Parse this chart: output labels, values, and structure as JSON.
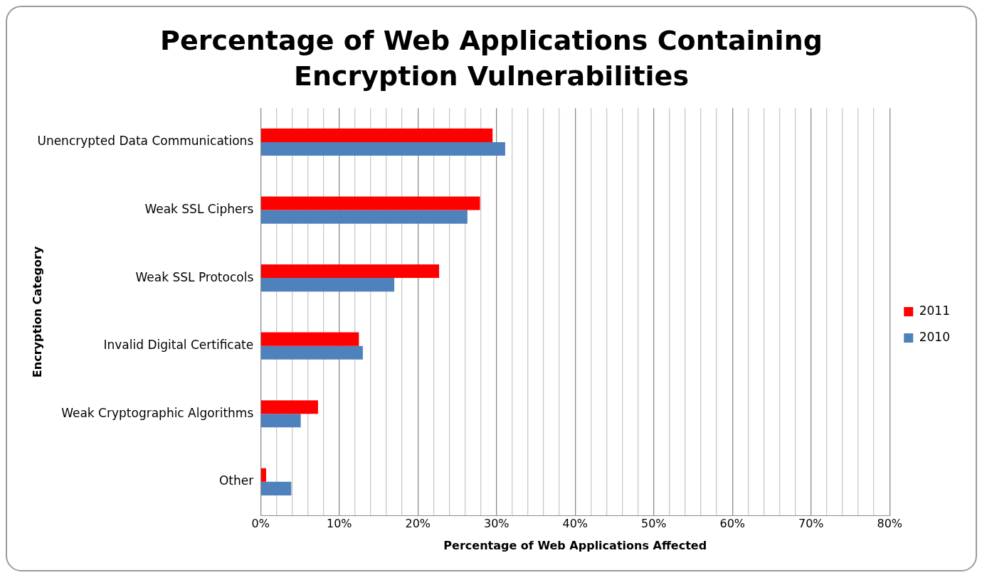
{
  "chart_data": {
    "type": "bar",
    "orientation": "horizontal",
    "title": "Percentage of Web Applications Containing Encryption Vulnerabilities",
    "xlabel": "Percentage of Web Applications Affected",
    "ylabel": "Encryption Category",
    "categories": [
      "Unencrypted Data Communications",
      "Weak SSL Ciphers",
      "Weak SSL Protocols",
      "Invalid Digital Certificate",
      "Weak Cryptographic Algorithms",
      "Other"
    ],
    "series": [
      {
        "name": "2011",
        "color": "#ff0000",
        "values": [
          29.5,
          27.9,
          22.7,
          12.5,
          7.3,
          0.7
        ]
      },
      {
        "name": "2010",
        "color": "#4f81bd",
        "values": [
          31.1,
          26.3,
          17.0,
          13.0,
          5.1,
          3.9
        ]
      }
    ],
    "xlim": [
      0,
      80
    ],
    "xticks": [
      {
        "value": 0,
        "label": "0%"
      },
      {
        "value": 2,
        "label": null
      },
      {
        "value": 4,
        "label": null
      },
      {
        "value": 6,
        "label": null
      },
      {
        "value": 8,
        "label": null
      },
      {
        "value": 10,
        "label": "10%"
      },
      {
        "value": 12,
        "label": null
      },
      {
        "value": 14,
        "label": null
      },
      {
        "value": 16,
        "label": null
      },
      {
        "value": 18,
        "label": null
      },
      {
        "value": 20,
        "label": "20%"
      },
      {
        "value": 22,
        "label": null
      },
      {
        "value": 24,
        "label": null
      },
      {
        "value": 26,
        "label": null
      },
      {
        "value": 28,
        "label": null
      },
      {
        "value": 30,
        "label": "30%"
      },
      {
        "value": 32,
        "label": null
      },
      {
        "value": 34,
        "label": null
      },
      {
        "value": 36,
        "label": null
      },
      {
        "value": 38,
        "label": null
      },
      {
        "value": 40,
        "label": "40%"
      },
      {
        "value": 42,
        "label": null
      },
      {
        "value": 44,
        "label": null
      },
      {
        "value": 46,
        "label": null
      },
      {
        "value": 48,
        "label": null
      },
      {
        "value": 50,
        "label": "50%"
      },
      {
        "value": 52,
        "label": null
      },
      {
        "value": 54,
        "label": null
      },
      {
        "value": 56,
        "label": null
      },
      {
        "value": 58,
        "label": null
      },
      {
        "value": 60,
        "label": "60%"
      },
      {
        "value": 62,
        "label": null
      },
      {
        "value": 64,
        "label": null
      },
      {
        "value": 66,
        "label": null
      },
      {
        "value": 68,
        "label": null
      },
      {
        "value": 70,
        "label": "70%"
      },
      {
        "value": 72,
        "label": null
      },
      {
        "value": 74,
        "label": null
      },
      {
        "value": 76,
        "label": null
      },
      {
        "value": 78,
        "label": null
      },
      {
        "value": 80,
        "label": "80%"
      }
    ],
    "grid": "x",
    "legend": "right"
  }
}
